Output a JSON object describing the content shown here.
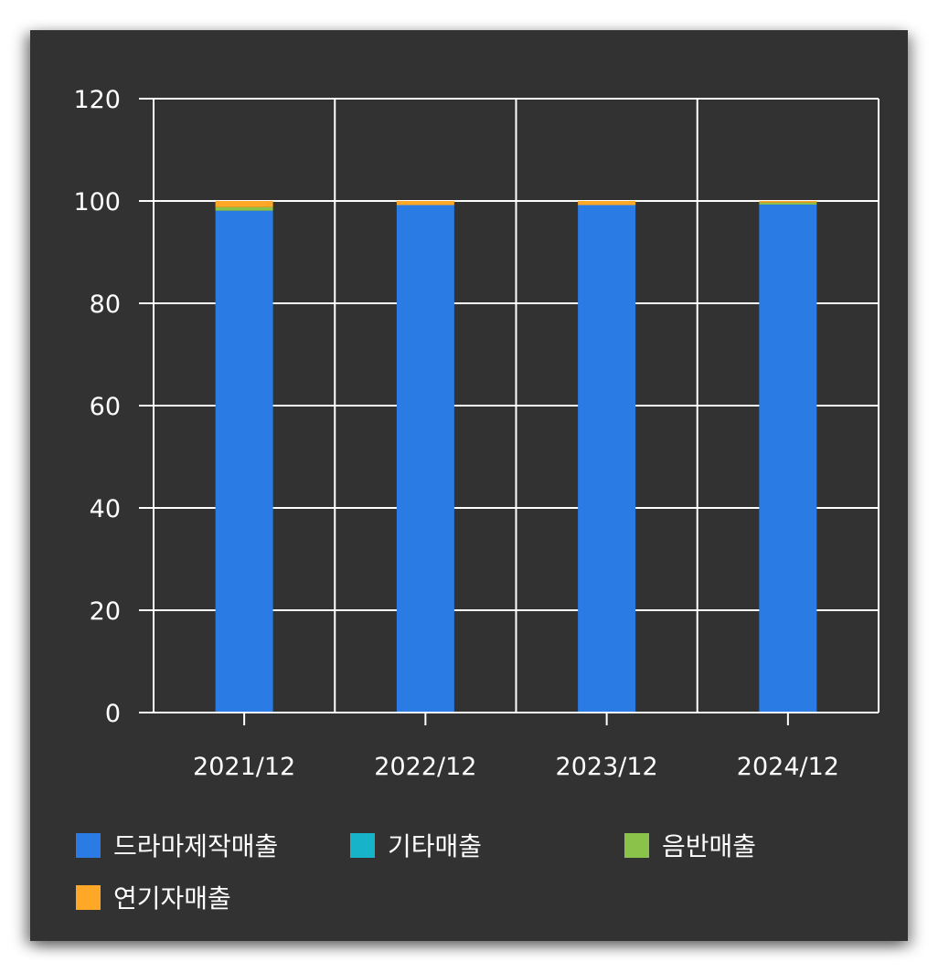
{
  "chart_data": {
    "type": "bar",
    "stacked": true,
    "categories": [
      "2021/12",
      "2022/12",
      "2023/12",
      "2024/12"
    ],
    "series": [
      {
        "name": "드라마제작매출",
        "values": [
          98.1,
          99.2,
          99.2,
          99.3
        ],
        "color": "#2a7be4"
      },
      {
        "name": "기타매출",
        "values": [
          0.0,
          0.0,
          0.0,
          0.0
        ],
        "color": "#17b3c8"
      },
      {
        "name": "음반매출",
        "values": [
          0.7,
          0.0,
          0.0,
          0.4
        ],
        "color": "#8bc34a"
      },
      {
        "name": "연기자매출",
        "values": [
          1.2,
          0.8,
          0.8,
          0.3
        ],
        "color": "#ffa726"
      }
    ],
    "yticks": [
      0,
      20,
      40,
      60,
      80,
      100,
      120
    ],
    "ylim": [
      0,
      120
    ],
    "grid": true,
    "legend_position": "bottom",
    "background": "#323232",
    "grid_color": "#ffffff",
    "text_color": "#ffffff"
  }
}
